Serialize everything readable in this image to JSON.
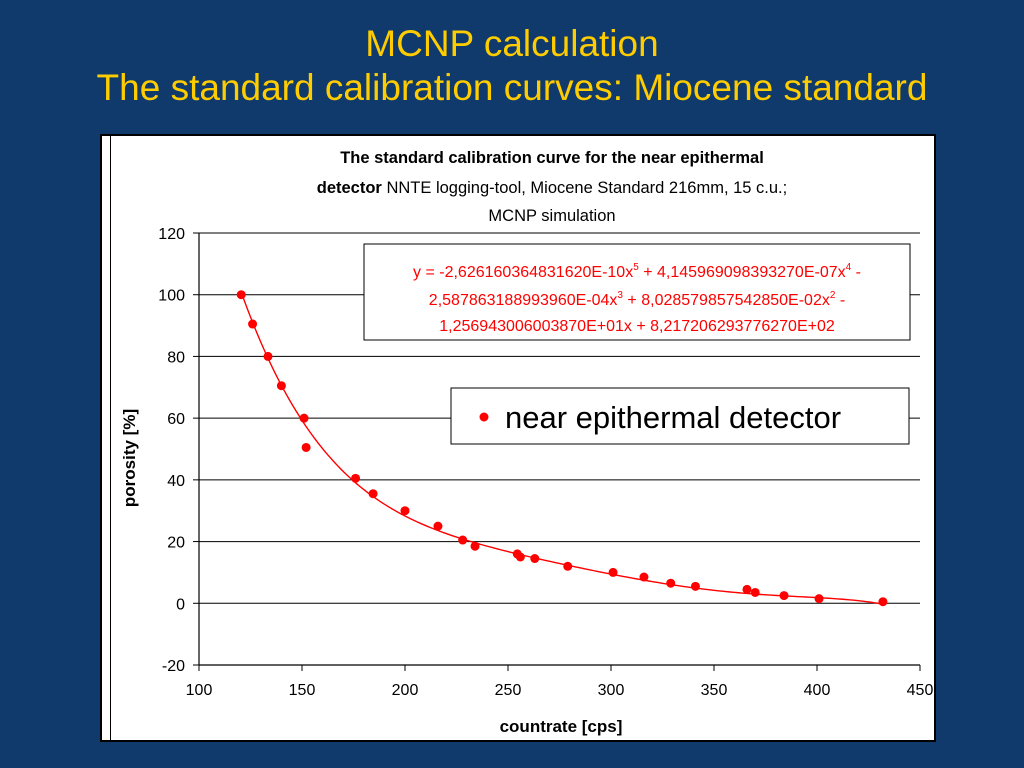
{
  "slide": {
    "title_line1": "MCNP calculation",
    "title_line2": "The standard calibration curves: Miocene standard"
  },
  "chart_data": {
    "type": "scatter",
    "title_bold_1": "The standard calibration curve for the near epithermal",
    "title_bold_2": "detector",
    "title_normal_2": " NNTE logging-tool, Miocene Standard 216mm, 15 c.u.;",
    "title_line3": "MCNP simulation",
    "xlabel": "countrate [cps]",
    "ylabel": "porosity [%]",
    "xlim": [
      100,
      450
    ],
    "ylim": [
      -20,
      120
    ],
    "xticks": [
      100,
      150,
      200,
      250,
      300,
      350,
      400,
      450
    ],
    "yticks": [
      -20,
      0,
      20,
      40,
      60,
      80,
      100,
      120
    ],
    "grid": "horizontal",
    "legend_position": "right",
    "series": [
      {
        "name": "near epithermal detector",
        "color": "#ff0000",
        "points": [
          [
            120.5,
            100
          ],
          [
            126,
            90.5
          ],
          [
            133.5,
            80
          ],
          [
            140,
            70.5
          ],
          [
            151,
            60
          ],
          [
            152,
            50.5
          ],
          [
            176,
            40.5
          ],
          [
            184.5,
            35.5
          ],
          [
            200,
            30
          ],
          [
            216,
            25
          ],
          [
            228,
            20.5
          ],
          [
            234,
            18.5
          ],
          [
            254.5,
            16
          ],
          [
            256,
            15
          ],
          [
            263,
            14.5
          ],
          [
            279,
            12
          ],
          [
            301,
            10
          ],
          [
            316,
            8.5
          ],
          [
            329,
            6.5
          ],
          [
            341,
            5.5
          ],
          [
            366,
            4.5
          ],
          [
            370,
            3.5
          ],
          [
            384,
            2.5
          ],
          [
            401,
            1.5
          ],
          [
            432,
            0.5
          ]
        ]
      }
    ],
    "trendline": {
      "type": "polynomial",
      "order": 5,
      "color": "#ff0000",
      "coefficients": [
        821.720629377627,
        -12.5694300600387,
        0.0802857985754285,
        -0.000258786318899396,
        4.14596909839327e-07,
        -2.62616036483162e-10
      ],
      "equation_line1": "y = -2,626160364831620E-10x",
      "exp5": "5",
      "equation_part2": " + 4,145969098393270E-07x",
      "exp4": "4",
      "equation_part3": " -",
      "equation_line2a": "2,587863188993960E-04x",
      "exp3": "3",
      "equation_line2b": " + 8,028579857542850E-02x",
      "exp2": "2",
      "equation_line2c": " -",
      "equation_line3": "1,256943006003870E+01x + 8,217206293776270E+02"
    }
  }
}
